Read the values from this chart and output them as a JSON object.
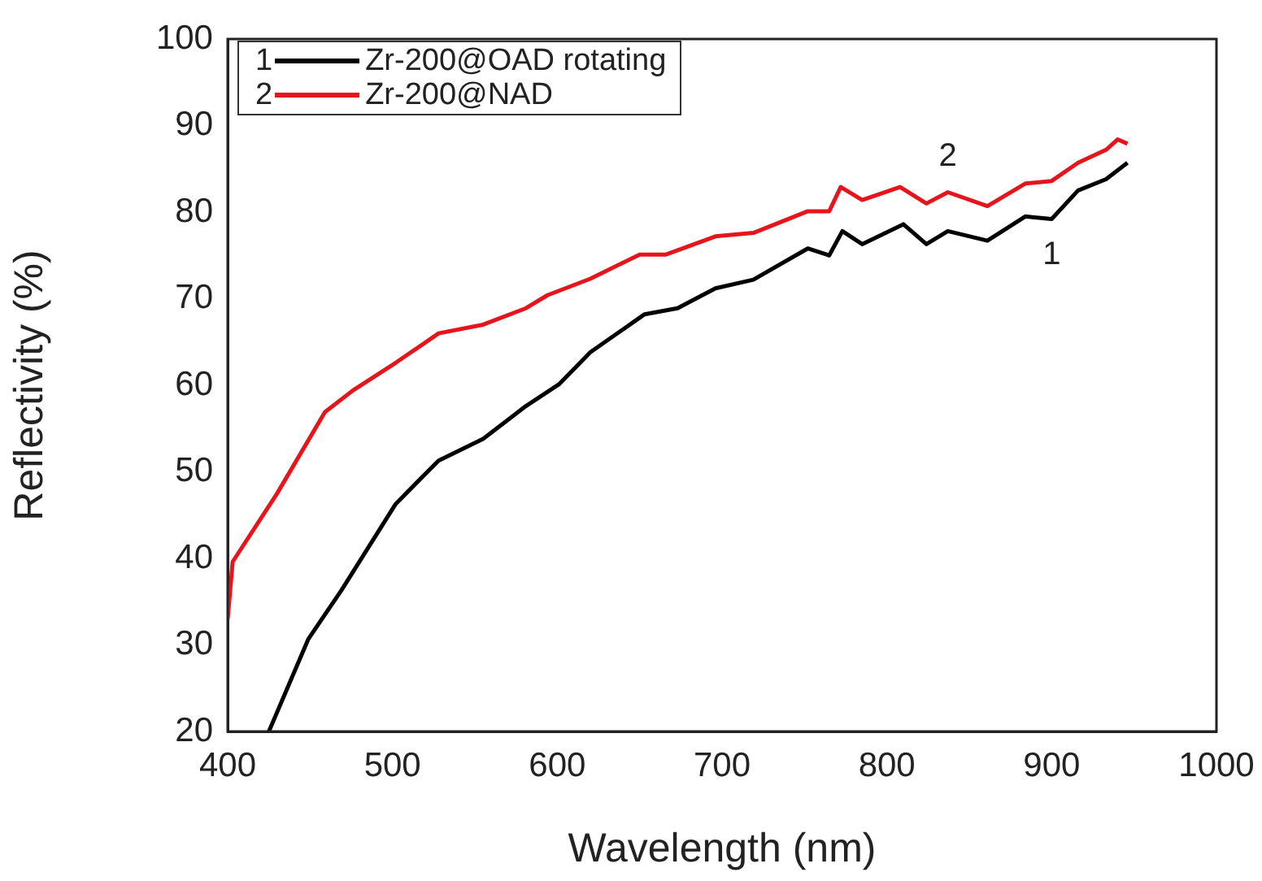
{
  "chart_data": {
    "type": "line",
    "xlabel": "Wavelength (nm)",
    "ylabel": "Reflectivity (%)",
    "xlim": [
      400,
      1000
    ],
    "xticks": [
      400,
      500,
      600,
      700,
      800,
      900,
      1000
    ],
    "ylim": [
      20,
      100
    ],
    "yticks": [
      20,
      30,
      40,
      50,
      60,
      70,
      80,
      90,
      100
    ],
    "grid": false,
    "legend": "top left",
    "marker": "none",
    "line_style": "solid",
    "series": [
      {
        "name": "Zr-200@OAD rotating",
        "color": "#000000",
        "x": [
          425,
          449,
          469,
          502,
          528,
          555,
          581,
          601,
          620,
          653,
          673,
          696,
          719,
          752,
          765,
          773,
          785,
          810,
          824,
          837,
          861,
          884,
          900,
          916,
          933,
          946
        ],
        "values": [
          20,
          30.7,
          36.3,
          46.3,
          51.3,
          53.8,
          57.6,
          60.1,
          63.8,
          68.2,
          68.9,
          71.2,
          72.2,
          75.8,
          75,
          77.8,
          76.3,
          78.6,
          76.3,
          77.8,
          76.7,
          79.5,
          79.2,
          82.5,
          83.8,
          85.7
        ]
      },
      {
        "name": "Zr-200@NAD",
        "color": "#e8141b",
        "x": [
          400,
          403,
          430,
          459,
          476,
          502,
          528,
          555,
          581,
          594,
          620,
          650,
          666,
          696,
          719,
          752,
          765,
          772,
          785,
          808,
          824,
          837,
          861,
          884,
          900,
          916,
          933,
          940,
          946
        ],
        "values": [
          33,
          39.6,
          47.5,
          56.9,
          59.4,
          62.6,
          66,
          67,
          68.9,
          70.4,
          72.3,
          75.1,
          75.1,
          77.2,
          77.6,
          80.1,
          80.1,
          82.9,
          81.4,
          82.9,
          81,
          82.3,
          80.7,
          83.3,
          83.6,
          85.7,
          87.2,
          88.4,
          87.9
        ]
      }
    ],
    "annotations": [
      "1",
      "2"
    ]
  }
}
